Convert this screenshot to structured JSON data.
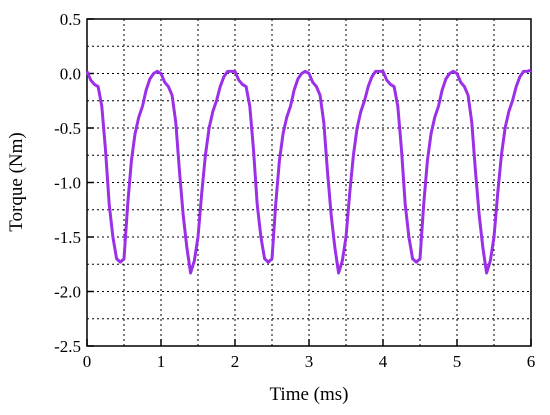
{
  "chart_data": {
    "type": "line",
    "xlabel": "Time (ms)",
    "ylabel": "Torque (Nm)",
    "x": [
      0,
      0.05,
      0.1,
      0.15,
      0.2,
      0.25,
      0.3,
      0.35,
      0.4,
      0.45,
      0.5,
      0.55,
      0.6,
      0.65,
      0.7,
      0.75,
      0.8,
      0.85,
      0.9,
      0.95,
      1,
      1.05,
      1.1,
      1.15,
      1.2,
      1.25,
      1.3,
      1.35,
      1.4,
      1.45,
      1.5,
      1.55,
      1.6,
      1.65,
      1.7,
      1.75,
      1.8,
      1.85,
      1.9,
      1.95,
      2,
      2.05,
      2.1,
      2.15,
      2.2,
      2.25,
      2.3,
      2.35,
      2.4,
      2.45,
      2.5,
      2.55,
      2.6,
      2.65,
      2.7,
      2.75,
      2.8,
      2.85,
      2.9,
      2.95,
      3,
      3.05,
      3.1,
      3.15,
      3.2,
      3.25,
      3.3,
      3.35,
      3.4,
      3.45,
      3.5,
      3.55,
      3.6,
      3.65,
      3.7,
      3.75,
      3.8,
      3.85,
      3.9,
      3.95,
      4,
      4.05,
      4.1,
      4.15,
      4.2,
      4.25,
      4.3,
      4.35,
      4.4,
      4.45,
      4.5,
      4.55,
      4.6,
      4.65,
      4.7,
      4.75,
      4.8,
      4.85,
      4.9,
      4.95,
      5,
      5.05,
      5.1,
      5.15,
      5.2,
      5.25,
      5.3,
      5.35,
      5.4,
      5.45,
      5.5,
      5.55,
      5.6,
      5.65,
      5.7,
      5.75,
      5.8,
      5.85,
      5.9,
      5.95,
      6
    ],
    "series": [
      {
        "name": "Torque",
        "color": "#9b30e8",
        "values": [
          0.02,
          -0.06,
          -0.1,
          -0.12,
          -0.3,
          -0.7,
          -1.2,
          -1.5,
          -1.7,
          -1.73,
          -1.7,
          -1.2,
          -0.8,
          -0.55,
          -0.4,
          -0.3,
          -0.15,
          -0.05,
          0.0,
          0.02,
          0.0,
          -0.08,
          -0.12,
          -0.2,
          -0.45,
          -0.9,
          -1.3,
          -1.6,
          -1.83,
          -1.72,
          -1.5,
          -1.1,
          -0.75,
          -0.5,
          -0.35,
          -0.25,
          -0.12,
          -0.03,
          0.02,
          0.02,
          0.02,
          -0.06,
          -0.1,
          -0.12,
          -0.3,
          -0.7,
          -1.2,
          -1.5,
          -1.7,
          -1.73,
          -1.7,
          -1.2,
          -0.8,
          -0.55,
          -0.4,
          -0.3,
          -0.15,
          -0.05,
          0.0,
          0.02,
          0.0,
          -0.08,
          -0.12,
          -0.2,
          -0.45,
          -0.9,
          -1.3,
          -1.6,
          -1.83,
          -1.72,
          -1.5,
          -1.1,
          -0.75,
          -0.5,
          -0.35,
          -0.25,
          -0.12,
          -0.03,
          0.02,
          0.02,
          0.02,
          -0.06,
          -0.1,
          -0.12,
          -0.3,
          -0.7,
          -1.2,
          -1.5,
          -1.7,
          -1.73,
          -1.7,
          -1.2,
          -0.8,
          -0.55,
          -0.4,
          -0.3,
          -0.15,
          -0.05,
          0.0,
          0.02,
          0.0,
          -0.08,
          -0.12,
          -0.2,
          -0.45,
          -0.9,
          -1.3,
          -1.6,
          -1.83,
          -1.72,
          -1.5,
          -1.1,
          -0.75,
          -0.5,
          -0.35,
          -0.25,
          -0.12,
          -0.03,
          0.02,
          0.02,
          0.03
        ]
      }
    ],
    "xlim": [
      0,
      6
    ],
    "xticks": [
      0,
      1,
      2,
      3,
      4,
      5,
      6
    ],
    "ylim": [
      -2.5,
      0.5
    ],
    "yticks": [
      0.5,
      {
        "value": 0,
        "label": "0.0"
      },
      -0.5,
      {
        "value": -1,
        "label": "-1.0"
      },
      -1.5,
      {
        "value": -2,
        "label": "-2.0"
      },
      -2.5
    ],
    "grid": true
  }
}
